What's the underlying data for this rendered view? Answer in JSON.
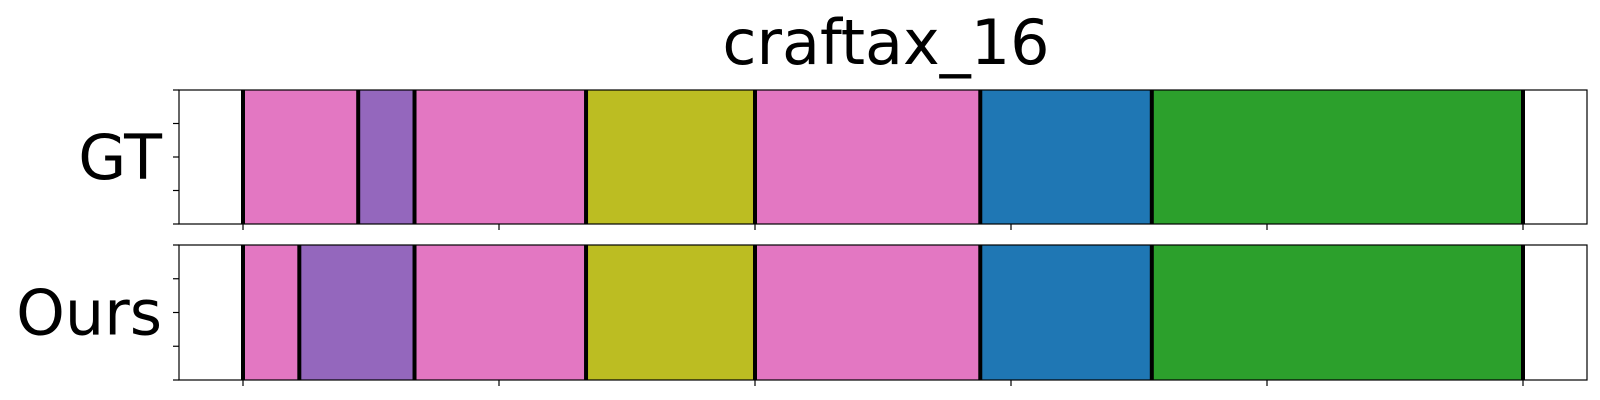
{
  "chart_data": {
    "type": "segmentation-bars",
    "title": "craftax_16",
    "xlim": [
      -25,
      525
    ],
    "x_ticks": [
      0,
      100,
      200,
      300,
      400,
      500
    ],
    "show_tick_labels": false,
    "rows": [
      {
        "label": "GT",
        "segments": [
          {
            "start": 0,
            "end": 45,
            "color": "#e377c2"
          },
          {
            "start": 45,
            "end": 67,
            "color": "#9467bd"
          },
          {
            "start": 67,
            "end": 134,
            "color": "#e377c2"
          },
          {
            "start": 134,
            "end": 200,
            "color": "#bcbd22"
          },
          {
            "start": 200,
            "end": 288,
            "color": "#e377c2"
          },
          {
            "start": 288,
            "end": 355,
            "color": "#1f77b4"
          },
          {
            "start": 355,
            "end": 500,
            "color": "#2ca02c"
          }
        ]
      },
      {
        "label": "Ours",
        "segments": [
          {
            "start": 0,
            "end": 22,
            "color": "#e377c2"
          },
          {
            "start": 22,
            "end": 67,
            "color": "#9467bd"
          },
          {
            "start": 67,
            "end": 134,
            "color": "#e377c2"
          },
          {
            "start": 134,
            "end": 200,
            "color": "#bcbd22"
          },
          {
            "start": 200,
            "end": 288,
            "color": "#e377c2"
          },
          {
            "start": 288,
            "end": 355,
            "color": "#1f77b4"
          },
          {
            "start": 355,
            "end": 500,
            "color": "#2ca02c"
          }
        ]
      }
    ]
  }
}
